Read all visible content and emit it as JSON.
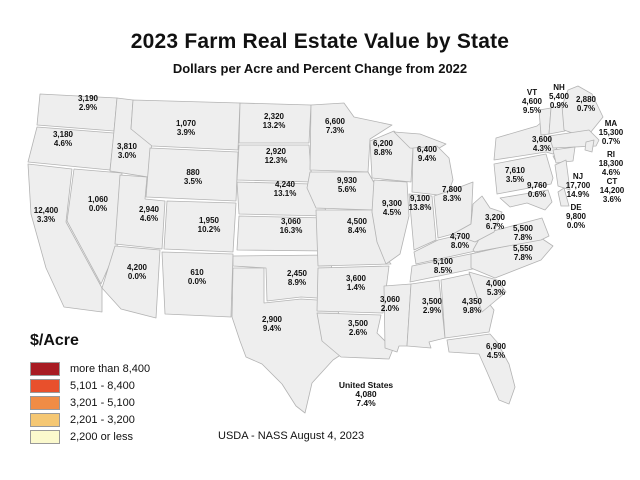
{
  "title": "2023 Farm Real Estate Value by State",
  "subtitle": "Dollars per Acre and Percent Change from 2022",
  "footer": "USDA - NASS August 4, 2023",
  "us_summary": {
    "label": "United States",
    "value": "4,080",
    "change": "7.4%"
  },
  "legend": {
    "title": "$/Acre"
  },
  "chart_data": {
    "type": "choropleth_map",
    "region": "United States (contiguous 48 states)",
    "unit": "dollars per acre",
    "value_label": "2023 farm real estate value ($/acre)",
    "change_label": "percent change from 2022",
    "categories": [
      {
        "label": "more than 8,400",
        "color": "#A81C23"
      },
      {
        "label": "5,101 - 8,400",
        "color": "#E8502C"
      },
      {
        "label": "3,201 - 5,100",
        "color": "#F08C45"
      },
      {
        "label": "2,201 - 3,200",
        "color": "#F5C773"
      },
      {
        "label": "2,200 or less",
        "color": "#FBF9CD"
      }
    ],
    "states": [
      {
        "abbr": "WA",
        "value": "3,190",
        "change": "2.9%",
        "category": 3,
        "show_abbr": false
      },
      {
        "abbr": "OR",
        "value": "3,180",
        "change": "4.6%",
        "category": 3,
        "show_abbr": false
      },
      {
        "abbr": "CA",
        "value": "12,400",
        "change": "3.3%",
        "category": 0,
        "show_abbr": false
      },
      {
        "abbr": "NV",
        "value": "1,060",
        "change": "0.0%",
        "category": 4,
        "show_abbr": false
      },
      {
        "abbr": "ID",
        "value": "3,810",
        "change": "3.0%",
        "category": 2,
        "show_abbr": false
      },
      {
        "abbr": "MT",
        "value": "1,070",
        "change": "3.9%",
        "category": 4,
        "show_abbr": false
      },
      {
        "abbr": "WY",
        "value": "880",
        "change": "3.5%",
        "category": 4,
        "show_abbr": false
      },
      {
        "abbr": "UT",
        "value": "2,940",
        "change": "4.6%",
        "category": 3,
        "show_abbr": false
      },
      {
        "abbr": "AZ",
        "value": "4,200",
        "change": "0.0%",
        "category": 2,
        "show_abbr": false
      },
      {
        "abbr": "CO",
        "value": "1,950",
        "change": "10.2%",
        "category": 4,
        "show_abbr": false
      },
      {
        "abbr": "NM",
        "value": "610",
        "change": "0.0%",
        "category": 4,
        "show_abbr": false
      },
      {
        "abbr": "ND",
        "value": "2,320",
        "change": "13.2%",
        "category": 3,
        "show_abbr": false
      },
      {
        "abbr": "SD",
        "value": "2,920",
        "change": "12.3%",
        "category": 3,
        "show_abbr": false
      },
      {
        "abbr": "NE",
        "value": "4,240",
        "change": "13.1%",
        "category": 2,
        "show_abbr": false
      },
      {
        "abbr": "KS",
        "value": "3,060",
        "change": "16.3%",
        "category": 3,
        "show_abbr": false
      },
      {
        "abbr": "OK",
        "value": "2,450",
        "change": "8.9%",
        "category": 3,
        "show_abbr": false
      },
      {
        "abbr": "TX",
        "value": "2,900",
        "change": "9.4%",
        "category": 3,
        "show_abbr": false
      },
      {
        "abbr": "MN",
        "value": "6,600",
        "change": "7.3%",
        "category": 1,
        "show_abbr": false
      },
      {
        "abbr": "IA",
        "value": "9,930",
        "change": "5.6%",
        "category": 0,
        "show_abbr": false
      },
      {
        "abbr": "MO",
        "value": "4,500",
        "change": "8.4%",
        "category": 2,
        "show_abbr": false
      },
      {
        "abbr": "AR",
        "value": "3,600",
        "change": "1.4%",
        "category": 2,
        "show_abbr": false
      },
      {
        "abbr": "LA",
        "value": "3,500",
        "change": "2.6%",
        "category": 2,
        "show_abbr": false
      },
      {
        "abbr": "WI",
        "value": "6,200",
        "change": "8.8%",
        "category": 1,
        "show_abbr": false
      },
      {
        "abbr": "IL",
        "value": "9,300",
        "change": "4.5%",
        "category": 0,
        "show_abbr": false
      },
      {
        "abbr": "MI",
        "value": "6,400",
        "change": "9.4%",
        "category": 1,
        "show_abbr": false
      },
      {
        "abbr": "IN",
        "value": "9,100",
        "change": "13.8%",
        "category": 0,
        "show_abbr": false
      },
      {
        "abbr": "OH",
        "value": "7,800",
        "change": "8.3%",
        "category": 1,
        "show_abbr": false
      },
      {
        "abbr": "KY",
        "value": "4,700",
        "change": "8.0%",
        "category": 2,
        "show_abbr": false
      },
      {
        "abbr": "TN",
        "value": "5,100",
        "change": "8.5%",
        "category": 2,
        "show_abbr": false
      },
      {
        "abbr": "MS",
        "value": "3,060",
        "change": "2.0%",
        "category": 3,
        "show_abbr": false
      },
      {
        "abbr": "AL",
        "value": "3,500",
        "change": "2.9%",
        "category": 2,
        "show_abbr": false
      },
      {
        "abbr": "GA",
        "value": "4,350",
        "change": "9.8%",
        "category": 2,
        "show_abbr": false
      },
      {
        "abbr": "FL",
        "value": "6,900",
        "change": "4.5%",
        "category": 1,
        "show_abbr": false
      },
      {
        "abbr": "SC",
        "value": "4,000",
        "change": "5.3%",
        "category": 2,
        "show_abbr": false
      },
      {
        "abbr": "NC",
        "value": "5,550",
        "change": "7.8%",
        "category": 1,
        "show_abbr": false
      },
      {
        "abbr": "VA",
        "value": "5,500",
        "change": "7.8%",
        "category": 1,
        "show_abbr": false
      },
      {
        "abbr": "WV",
        "value": "3,200",
        "change": "6.7%",
        "category": 3,
        "show_abbr": false
      },
      {
        "abbr": "PA",
        "value": "7,610",
        "change": "3.5%",
        "category": 1,
        "show_abbr": false
      },
      {
        "abbr": "NY",
        "value": "3,600",
        "change": "4.3%",
        "category": 2,
        "show_abbr": false
      },
      {
        "abbr": "VT",
        "value": "4,600",
        "change": "9.5%",
        "category": 2,
        "show_abbr": true
      },
      {
        "abbr": "NH",
        "value": "5,400",
        "change": "0.9%",
        "category": 1,
        "show_abbr": true
      },
      {
        "abbr": "ME",
        "value": "2,880",
        "change": "0.7%",
        "category": 3,
        "show_abbr": false
      },
      {
        "abbr": "MA",
        "value": "15,300",
        "change": "0.7%",
        "category": 0,
        "show_abbr": true
      },
      {
        "abbr": "RI",
        "value": "18,300",
        "change": "4.6%",
        "category": 0,
        "show_abbr": true
      },
      {
        "abbr": "CT",
        "value": "14,200",
        "change": "3.6%",
        "category": 0,
        "show_abbr": true
      },
      {
        "abbr": "NJ",
        "value": "17,700",
        "change": "14.9%",
        "category": 0,
        "show_abbr": true
      },
      {
        "abbr": "DE",
        "value": "9,800",
        "change": "0.0%",
        "category": 0,
        "show_abbr": true
      },
      {
        "abbr": "MD",
        "value": "9,760",
        "change": "0.6%",
        "category": 0,
        "show_abbr": false
      }
    ]
  }
}
